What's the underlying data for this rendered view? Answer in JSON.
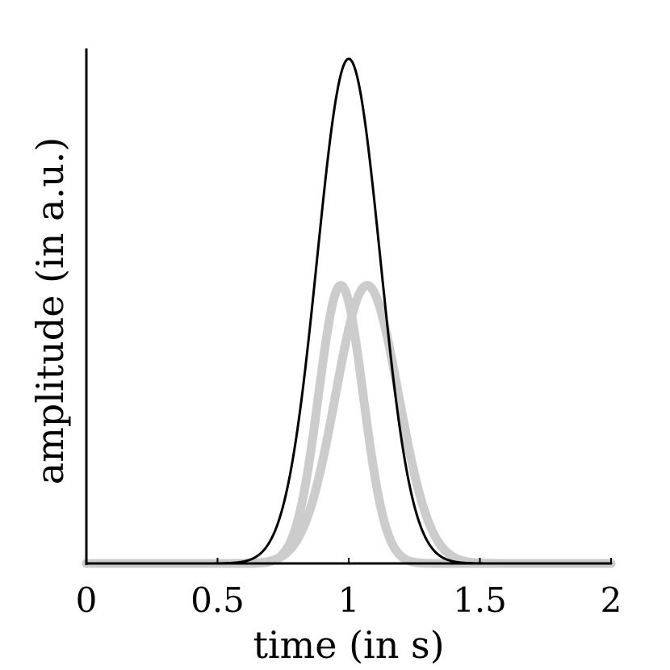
{
  "chart_data": {
    "type": "line",
    "xlabel": "time (in s)",
    "ylabel": "amplitude (in a.u.)",
    "xlim": [
      0,
      2
    ],
    "ylim": [
      0,
      1
    ],
    "x_ticks": [
      0,
      0.5,
      1,
      1.5,
      2
    ],
    "x_tick_labels": [
      "0",
      "0.5",
      "1",
      "1.5",
      "2"
    ],
    "grid": false,
    "legend": "none",
    "series": [
      {
        "kind": "gaussian",
        "peak_x": 1.0,
        "peak_y": 0.98,
        "sigma": 0.12,
        "color": "#000000"
      },
      {
        "kind": "gaussian",
        "peak_x": 0.97,
        "peak_y": 0.54,
        "sigma": 0.085,
        "color": "#cccccc"
      },
      {
        "kind": "gaussian",
        "peak_x": 1.07,
        "peak_y": 0.54,
        "sigma": 0.12,
        "color": "#cccccc"
      }
    ]
  }
}
